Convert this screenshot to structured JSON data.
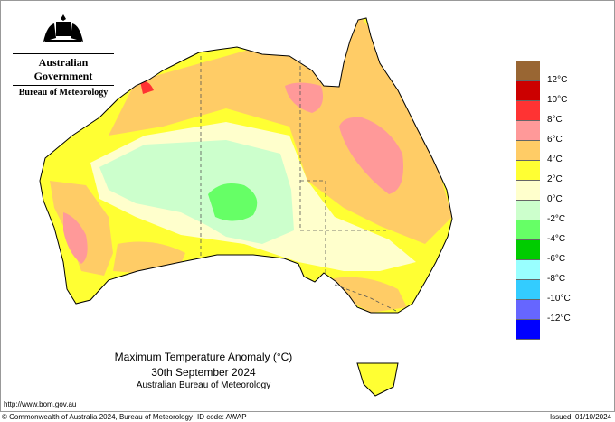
{
  "header": {
    "government": "Australian Government",
    "agency": "Bureau of Meteorology"
  },
  "map": {
    "title": "Maximum Temperature Anomaly (°C)",
    "date": "30th September 2024",
    "source": "Australian Bureau of Meteorology"
  },
  "legend": {
    "colors": [
      "#996633",
      "#cc0000",
      "#ff3333",
      "#ff9999",
      "#ffcc66",
      "#ffff33",
      "#ffffcc",
      "#ccffcc",
      "#66ff66",
      "#00cc00",
      "#99ffff",
      "#33ccff",
      "#6666ff",
      "#0000ff"
    ],
    "labels": [
      "12°C",
      "10°C",
      "8°C",
      "6°C",
      "4°C",
      "2°C",
      "0°C",
      "-2°C",
      "-4°C",
      "-6°C",
      "-8°C",
      "-10°C",
      "-12°C"
    ]
  },
  "footer": {
    "url": "http://www.bom.gov.au",
    "copyright": "© Commonwealth of Australia 2024, Bureau of Meteorology",
    "id_code": "ID code: AWAP",
    "issued": "Issued: 01/10/2024"
  }
}
